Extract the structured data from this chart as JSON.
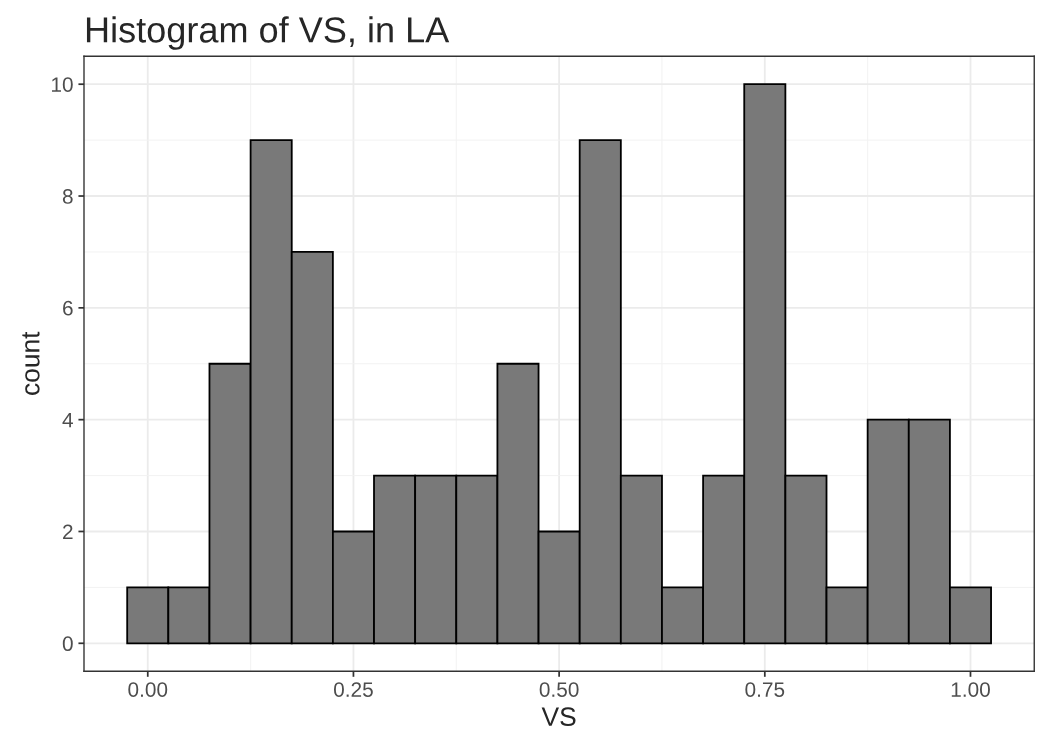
{
  "chart_data": {
    "type": "histogram",
    "title": "Histogram of VS, in LA",
    "xlabel": "VS",
    "ylabel": "count",
    "bins": [
      -0.025,
      0.025,
      0.075,
      0.125,
      0.175,
      0.225,
      0.275,
      0.325,
      0.375,
      0.425,
      0.475,
      0.525,
      0.575,
      0.625,
      0.675,
      0.725,
      0.775,
      0.825,
      0.875,
      0.925,
      0.975,
      1.025
    ],
    "values": [
      1,
      1,
      5,
      9,
      7,
      2,
      3,
      3,
      3,
      5,
      2,
      9,
      3,
      1,
      3,
      10,
      3,
      1,
      4,
      4,
      1
    ],
    "color": "#797979",
    "xlim": [
      -0.0775,
      1.0775
    ],
    "xticks": [
      {
        "value": 0,
        "label": "0.00"
      },
      {
        "value": 0.25,
        "label": "0.25"
      },
      {
        "value": 0.5,
        "label": "0.50"
      },
      {
        "value": 0.75,
        "label": "0.75"
      },
      {
        "value": 1,
        "label": "1.00"
      }
    ],
    "ylim": [
      -0.5,
      10.5
    ],
    "yticks": [
      0,
      2,
      4,
      6,
      8,
      10
    ],
    "grid": true
  }
}
